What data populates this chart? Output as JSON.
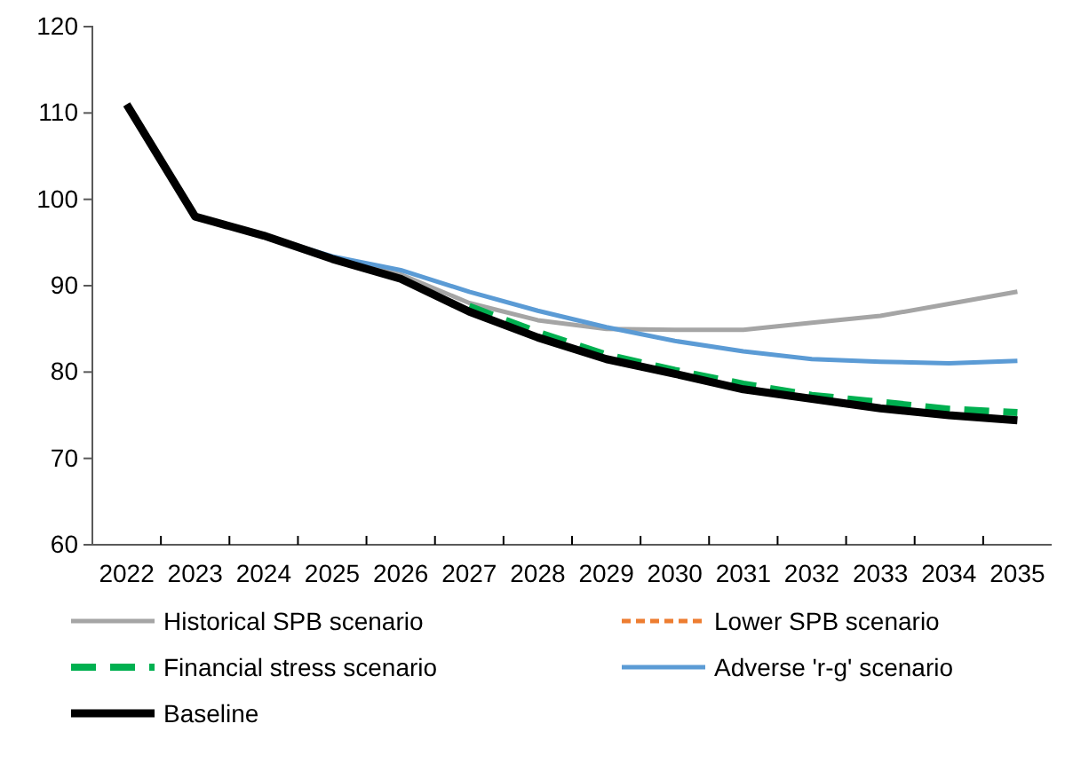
{
  "chart_data": {
    "type": "line",
    "categories": [
      "2022",
      "2023",
      "2024",
      "2025",
      "2026",
      "2027",
      "2028",
      "2029",
      "2030",
      "2031",
      "2032",
      "2033",
      "2034",
      "2035"
    ],
    "ylim": [
      60,
      120
    ],
    "yticks": [
      60,
      70,
      80,
      90,
      100,
      110,
      120
    ],
    "grid": false,
    "legend": "bottom",
    "series": [
      {
        "name": "Historical SPB scenario",
        "color": "#a5a5a5",
        "line_style": "solid",
        "values": [
          111,
          98,
          95.8,
          93.1,
          91.3,
          88,
          86,
          85,
          84.9,
          84.9,
          85.7,
          86.5,
          87.9,
          89.3
        ]
      },
      {
        "name": "Lower SPB scenario",
        "color": "#ed7d31",
        "line_style": "dotted",
        "values": [
          null,
          null,
          null,
          null,
          null,
          null,
          null,
          null,
          null,
          null,
          null,
          null,
          null,
          null
        ]
      },
      {
        "name": "Financial stress scenario",
        "color": "#00b050",
        "line_style": "dashed",
        "values": [
          null,
          null,
          null,
          null,
          null,
          87.6,
          84.6,
          82,
          80.2,
          78.6,
          77.3,
          76.5,
          75.7,
          75.3
        ]
      },
      {
        "name": "Adverse 'r-g' scenario",
        "color": "#5b9bd5",
        "line_style": "solid",
        "values": [
          null,
          null,
          95.8,
          93.4,
          91.8,
          89.3,
          87.1,
          85.2,
          83.6,
          82.4,
          81.5,
          81.2,
          81,
          81.3
        ]
      },
      {
        "name": "Baseline",
        "color": "#000000",
        "line_style": "solid",
        "values": [
          111,
          98,
          95.8,
          93.1,
          90.8,
          87,
          84,
          81.5,
          79.8,
          78,
          76.9,
          75.8,
          75,
          74.4
        ]
      }
    ]
  }
}
